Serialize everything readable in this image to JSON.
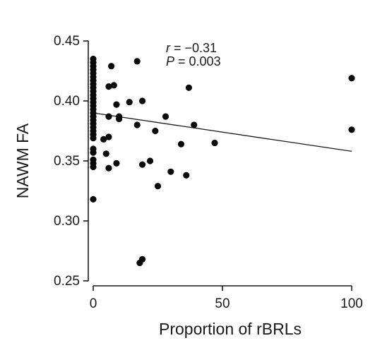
{
  "chart_data": {
    "type": "scatter",
    "xlabel": "Proportion of rBRLs",
    "ylabel": "NAWM FA",
    "xlim": [
      0,
      100
    ],
    "ylim": [
      0.25,
      0.45
    ],
    "xticks": [
      0,
      50,
      100
    ],
    "yticks": [
      0.25,
      0.3,
      0.35,
      0.4,
      0.45
    ],
    "xtick_labels": [
      "0",
      "50",
      "100"
    ],
    "ytick_labels": [
      "0.25",
      "0.30",
      "0.35",
      "0.40",
      "0.45"
    ],
    "grid": false,
    "legend": "none",
    "annotations": {
      "r_symbol": "r",
      "r_value": " = −0.31",
      "p_symbol": "P",
      "p_value": " = 0.003"
    },
    "regression": {
      "x": [
        0,
        100
      ],
      "y": [
        0.39,
        0.358
      ]
    },
    "points": [
      [
        0,
        0.435
      ],
      [
        0,
        0.432
      ],
      [
        0,
        0.429
      ],
      [
        0,
        0.426
      ],
      [
        0,
        0.423
      ],
      [
        0,
        0.42
      ],
      [
        0,
        0.417
      ],
      [
        0,
        0.414
      ],
      [
        0,
        0.411
      ],
      [
        0,
        0.408
      ],
      [
        0,
        0.405
      ],
      [
        0,
        0.402
      ],
      [
        0,
        0.399
      ],
      [
        0,
        0.396
      ],
      [
        0,
        0.393
      ],
      [
        0,
        0.39
      ],
      [
        0,
        0.387
      ],
      [
        0,
        0.384
      ],
      [
        0,
        0.381
      ],
      [
        0,
        0.378
      ],
      [
        0,
        0.375
      ],
      [
        0,
        0.372
      ],
      [
        0,
        0.369
      ],
      [
        0,
        0.36
      ],
      [
        0,
        0.357
      ],
      [
        0,
        0.351
      ],
      [
        0,
        0.348
      ],
      [
        0,
        0.345
      ],
      [
        0,
        0.318
      ],
      [
        4,
        0.368
      ],
      [
        5,
        0.356
      ],
      [
        6,
        0.344
      ],
      [
        6,
        0.37
      ],
      [
        6,
        0.387
      ],
      [
        6,
        0.412
      ],
      [
        7,
        0.429
      ],
      [
        8,
        0.413
      ],
      [
        9,
        0.348
      ],
      [
        9,
        0.397
      ],
      [
        10,
        0.385
      ],
      [
        10,
        0.387
      ],
      [
        14,
        0.399
      ],
      [
        17,
        0.38
      ],
      [
        17,
        0.433
      ],
      [
        18,
        0.265
      ],
      [
        19,
        0.268
      ],
      [
        19,
        0.347
      ],
      [
        19,
        0.4
      ],
      [
        22,
        0.35
      ],
      [
        24,
        0.375
      ],
      [
        25,
        0.329
      ],
      [
        28,
        0.387
      ],
      [
        30,
        0.341
      ],
      [
        34,
        0.364
      ],
      [
        36,
        0.338
      ],
      [
        37,
        0.411
      ],
      [
        39,
        0.38
      ],
      [
        47,
        0.365
      ],
      [
        100,
        0.419
      ],
      [
        100,
        0.376
      ]
    ]
  }
}
